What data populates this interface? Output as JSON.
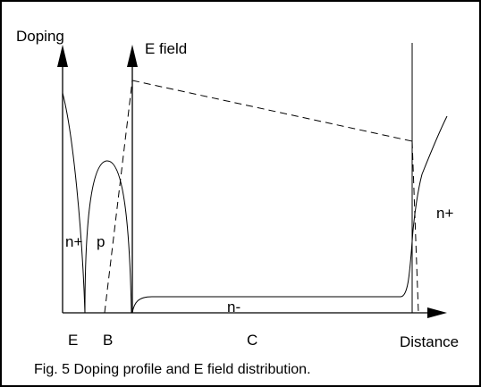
{
  "labels": {
    "doping_axis": "Doping",
    "efield_axis": "E field",
    "distance_axis": "Distance",
    "region_n_plus_left": "n+",
    "region_p": "p",
    "region_n_minus": "n-",
    "region_n_plus_right": "n+",
    "emitter": "E",
    "base": "B",
    "collector": "C"
  },
  "caption": "Fig. 5  Doping profile and E field distribution.",
  "colors": {
    "line": "#000000",
    "background": "#ffffff",
    "border": "#000000"
  }
}
